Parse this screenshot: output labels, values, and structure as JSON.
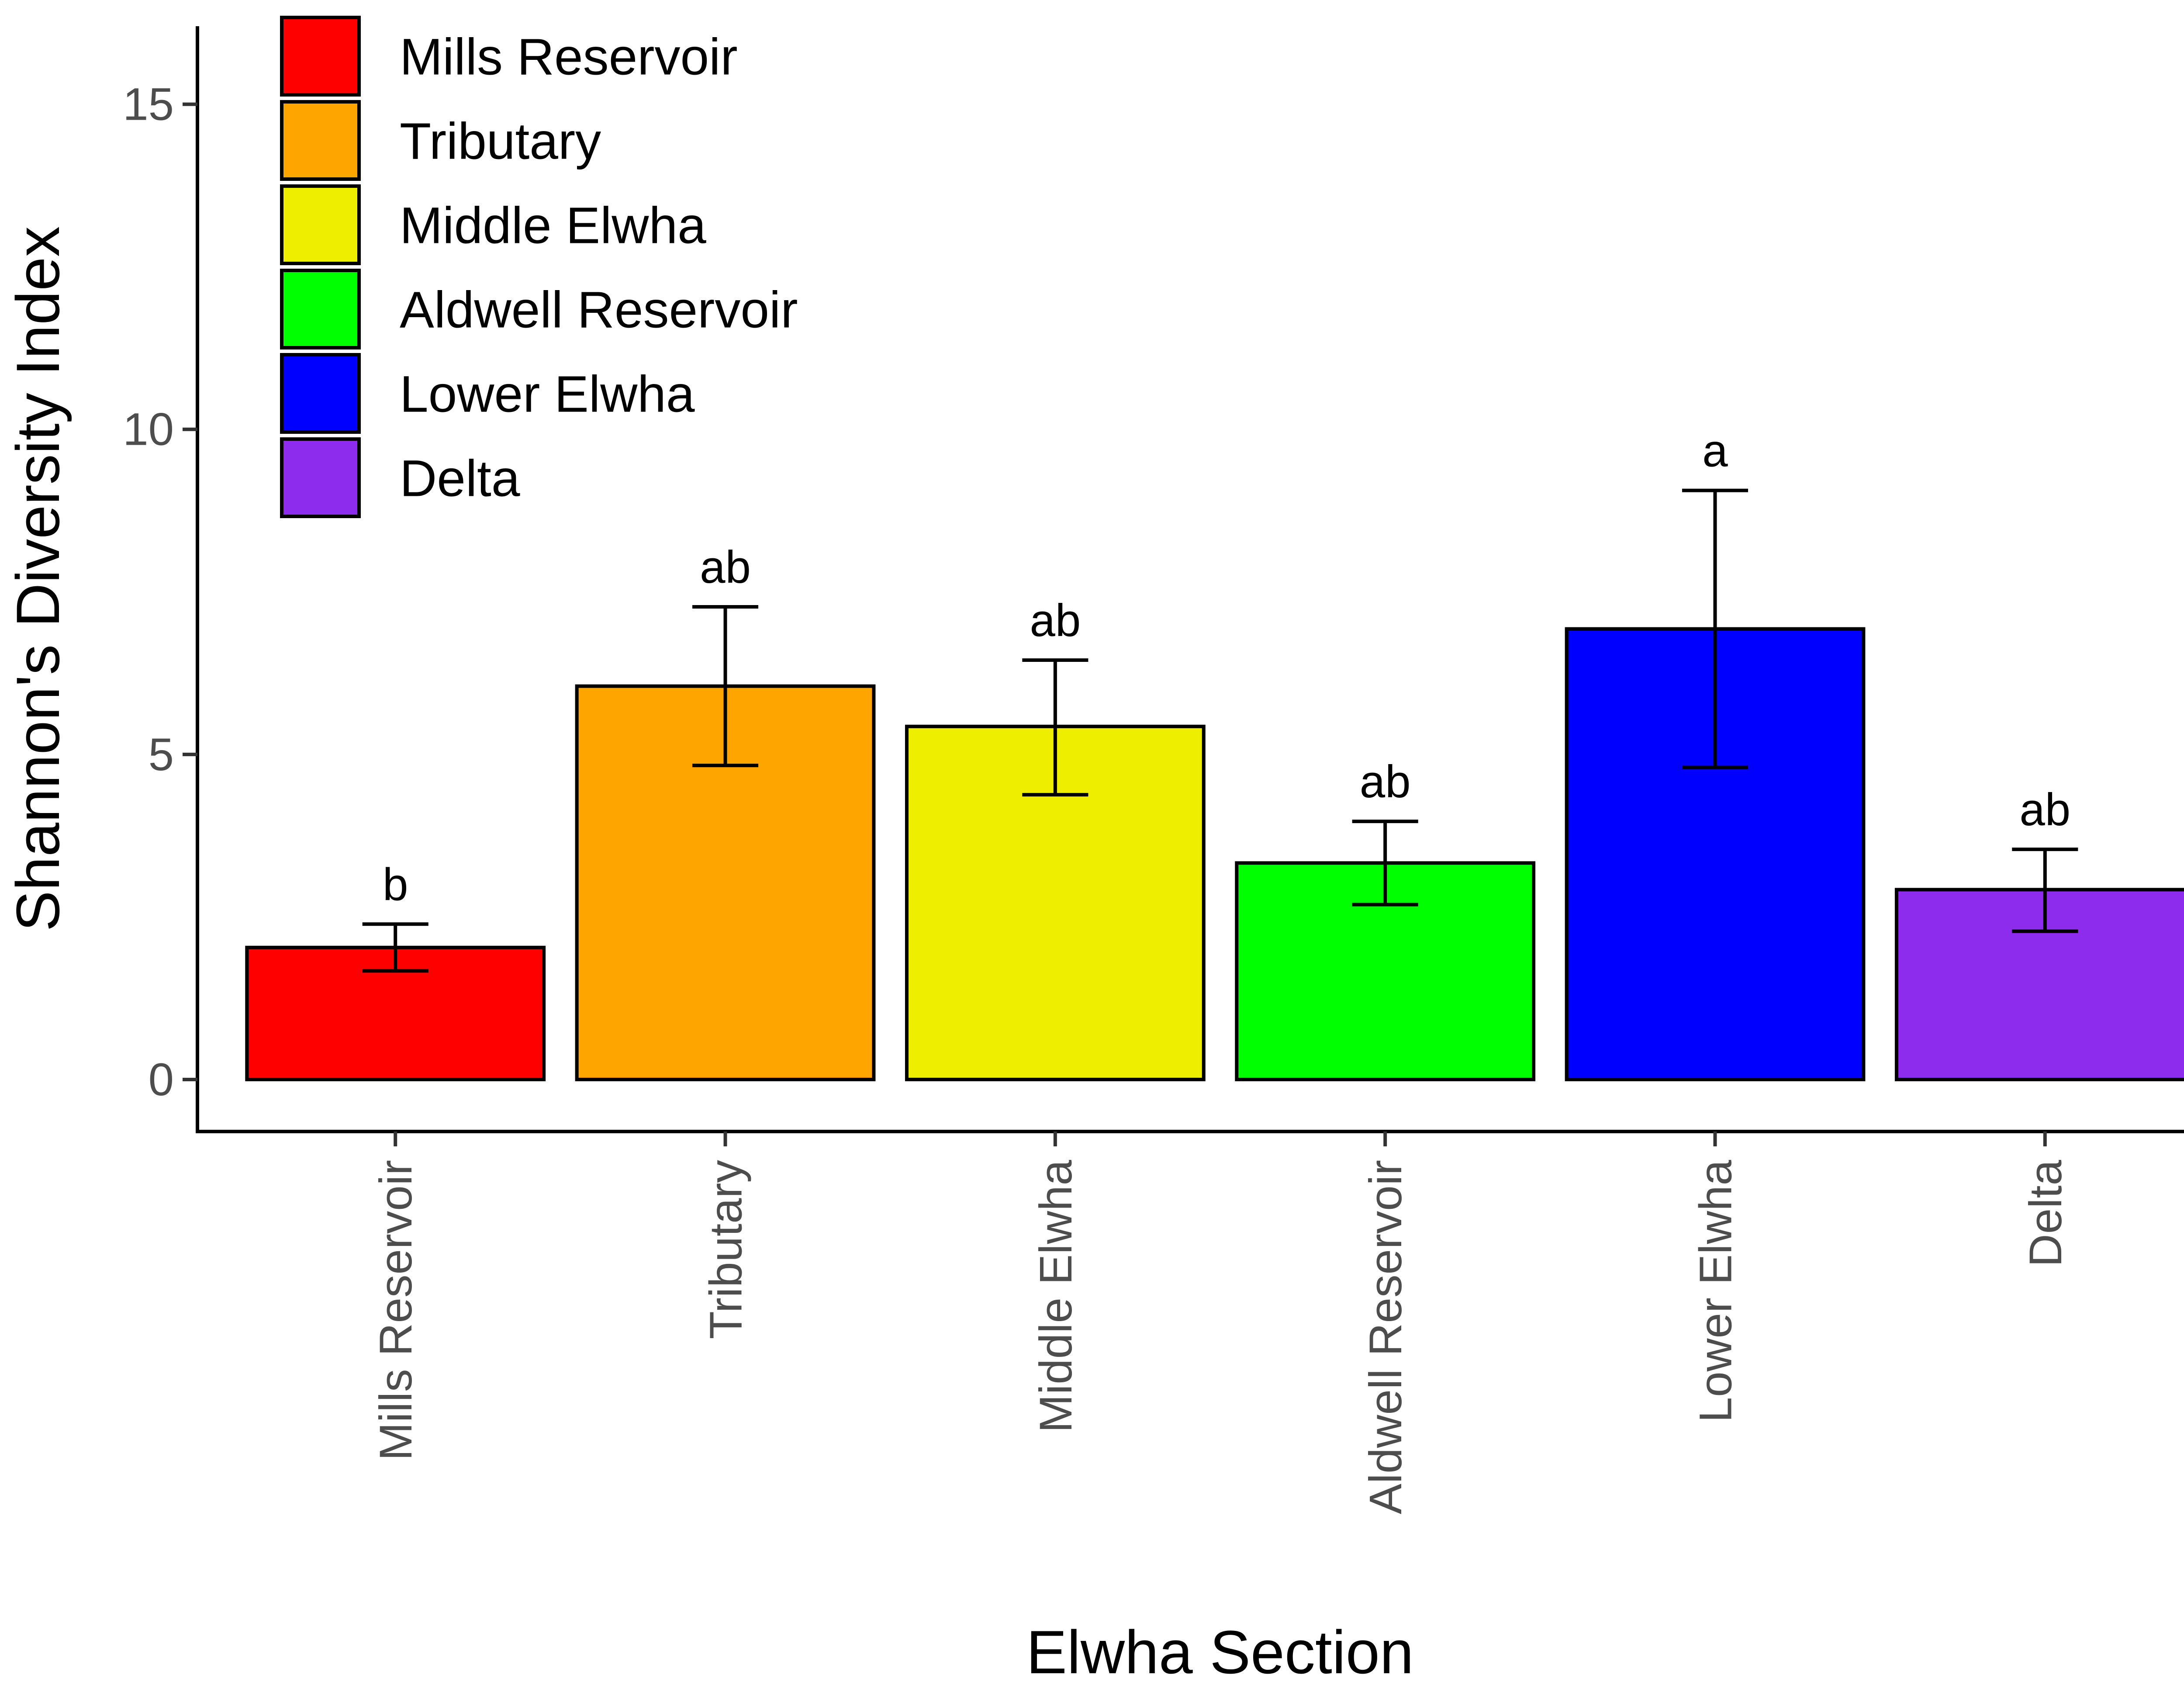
{
  "chart_data": {
    "type": "bar",
    "title": "",
    "xlabel": "Elwha Section",
    "ylabel": "Shannon's Diversity Index",
    "ylim": [
      -0.8,
      16.2
    ],
    "yticks": [
      0,
      5,
      10,
      15
    ],
    "grid": false,
    "legend_position": "top-left",
    "categories": [
      "Mills Reservoir",
      "Tributary",
      "Middle Elwha",
      "Aldwell Reservoir",
      "Lower Elwha",
      "Delta"
    ],
    "values": [
      2.03,
      6.05,
      5.43,
      3.33,
      6.93,
      2.92
    ],
    "error_low": [
      1.67,
      4.83,
      4.38,
      2.69,
      4.8,
      2.28
    ],
    "error_high": [
      2.39,
      7.27,
      6.45,
      3.97,
      9.06,
      3.54
    ],
    "significance_letters": [
      "b",
      "ab",
      "ab",
      "ab",
      "a",
      "ab"
    ],
    "colors": [
      "#ff0000",
      "#ffa500",
      "#eeee00",
      "#00ff00",
      "#0000ff",
      "#8e2ced"
    ],
    "legend": [
      "Mills Reservoir",
      "Tributary",
      "Middle Elwha",
      "Aldwell Reservoir",
      "Lower Elwha",
      "Delta"
    ]
  }
}
